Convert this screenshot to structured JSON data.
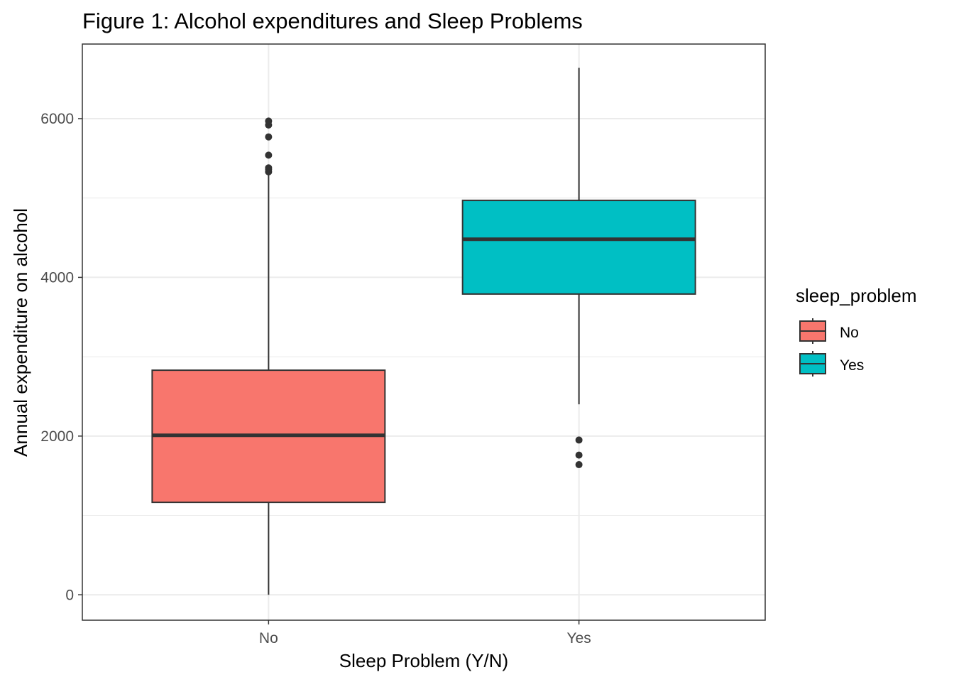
{
  "chart_data": {
    "type": "boxplot",
    "title": "Figure 1: Alcohol expenditures and Sleep Problems",
    "xlabel": "Sleep Problem (Y/N)",
    "ylabel": "Annual expenditure on alcohol",
    "categories": [
      "No",
      "Yes"
    ],
    "ylim": [
      -320,
      6940
    ],
    "y_ticks": [
      0,
      2000,
      4000,
      6000
    ],
    "y_tick_labels": [
      "0",
      "2000",
      "4000",
      "6000"
    ],
    "y_minor_ticks": [
      1000,
      3000,
      5000
    ],
    "grid": true,
    "legend": {
      "title": "sleep_problem",
      "position": "right",
      "entries": [
        {
          "label": "No",
          "color": "#F8766D"
        },
        {
          "label": "Yes",
          "color": "#00BFC4"
        }
      ]
    },
    "boxes": [
      {
        "category": "No",
        "color": "#F8766D",
        "whisker_low": 0,
        "q1": 1165,
        "median": 2010,
        "q3": 2830,
        "whisker_high": 5290,
        "outliers": [
          5330,
          5360,
          5380,
          5540,
          5770,
          5920,
          5970
        ]
      },
      {
        "category": "Yes",
        "color": "#00BFC4",
        "whisker_low": 2400,
        "q1": 3790,
        "median": 4480,
        "q3": 4970,
        "whisker_high": 6640,
        "outliers": [
          1640,
          1760,
          1950
        ]
      }
    ]
  }
}
